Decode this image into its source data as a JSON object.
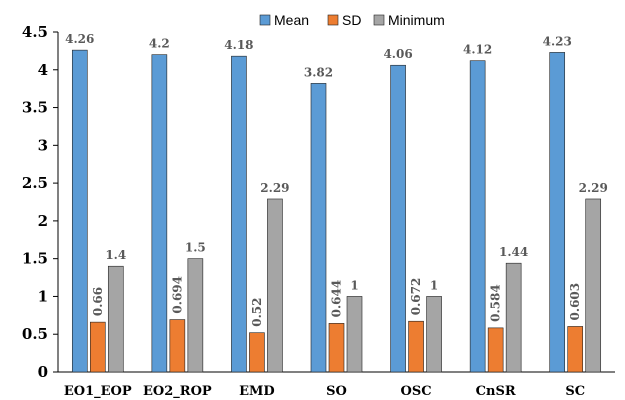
{
  "chart_data": {
    "type": "bar",
    "categories": [
      "EO1_EOP",
      "EO2_ROP",
      "EMD",
      "SO",
      "OSC",
      "CnSR",
      "SC"
    ],
    "series": [
      {
        "name": "Mean",
        "values": [
          4.26,
          4.2,
          4.18,
          3.82,
          4.06,
          4.12,
          4.23
        ],
        "color": "#5B9BD5",
        "labels": [
          "4.26",
          "4.2",
          "4.18",
          "3.82",
          "4.06",
          "4.12",
          "4.23"
        ]
      },
      {
        "name": "SD",
        "values": [
          0.66,
          0.694,
          0.52,
          0.644,
          0.672,
          0.584,
          0.603
        ],
        "color": "#ED7D31",
        "labels": [
          "0.66",
          "0.694",
          "0.52",
          "0.644",
          "0.672",
          "0.584",
          "0.603"
        ]
      },
      {
        "name": "Minimum",
        "values": [
          1.4,
          1.5,
          2.29,
          1,
          1,
          1.44,
          2.29
        ],
        "color": "#A5A5A5",
        "labels": [
          "1.4",
          "1.5",
          "2.29",
          "1",
          "1",
          "1.44",
          "2.29"
        ]
      }
    ],
    "yticks": [
      "0",
      "0.5",
      "1",
      "1.5",
      "2",
      "2.5",
      "3",
      "3.5",
      "4",
      "4.5"
    ],
    "ylim": [
      0,
      4.5
    ],
    "title": "",
    "xlabel": "",
    "ylabel": "",
    "grid": false,
    "legend": "top-center",
    "sd_labels_rotated": true
  }
}
